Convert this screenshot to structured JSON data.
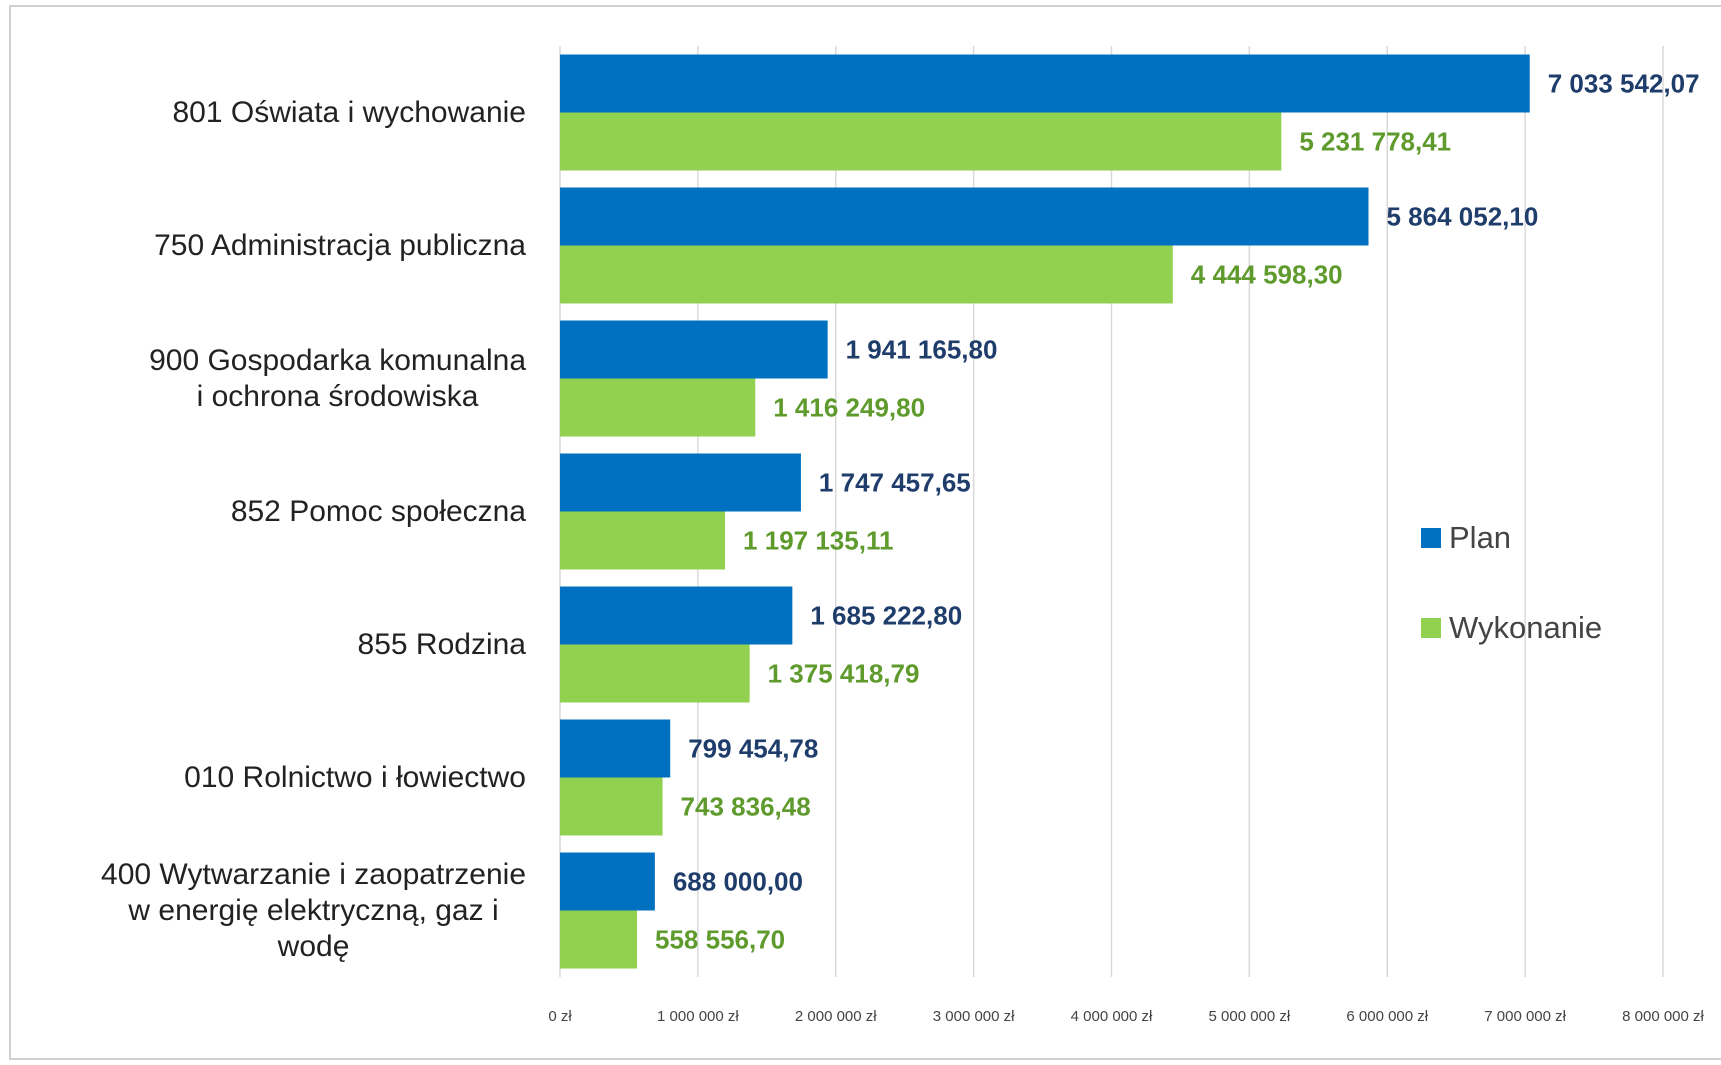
{
  "chart_data": {
    "type": "bar",
    "orientation": "horizontal",
    "categories": [
      "801 Oświata i wychowanie",
      "750 Administracja publiczna",
      "900 Gospodarka komunalna\ni ochrona środowiska",
      "852 Pomoc społeczna",
      "855 Rodzina",
      "010 Rolnictwo i łowiectwo",
      "400 Wytwarzanie i zaopatrzenie\nw energię elektryczną, gaz i\nwodę"
    ],
    "series": [
      {
        "name": "Plan",
        "color": "#0070c0",
        "label_color": "#1f3d6b",
        "values": [
          7033542.07,
          5864052.1,
          1941165.8,
          1747457.65,
          1685222.8,
          799454.78,
          688000.0
        ],
        "value_labels": [
          "7 033 542,07",
          "5 864 052,10",
          "1 941 165,80",
          "1 747 457,65",
          "1 685 222,80",
          "799 454,78",
          "688 000,00"
        ]
      },
      {
        "name": "Wykonanie",
        "color": "#92d050",
        "label_color": "#5e9a2c",
        "values": [
          5231778.41,
          4444598.3,
          1416249.8,
          1197135.11,
          1375418.79,
          743836.48,
          558556.7
        ],
        "value_labels": [
          "5 231 778,41",
          "4 444 598,30",
          "1 416 249,80",
          "1 197 135,11",
          "1 375 418,79",
          "743 836,48",
          "558 556,70"
        ]
      }
    ],
    "xlim": [
      0,
      8000000
    ],
    "xticks": [
      {
        "value": 0,
        "label": "0 zł"
      },
      {
        "value": 1000000,
        "label": "1 000 000 zł"
      },
      {
        "value": 2000000,
        "label": "2 000 000 zł"
      },
      {
        "value": 3000000,
        "label": "3 000 000 zł"
      },
      {
        "value": 4000000,
        "label": "4 000 000 zł"
      },
      {
        "value": 5000000,
        "label": "5 000 000 zł"
      },
      {
        "value": 6000000,
        "label": "6 000 000 zł"
      },
      {
        "value": 7000000,
        "label": "7 000 000 zł"
      },
      {
        "value": 8000000,
        "label": "8 000 000 zł"
      }
    ],
    "grid": true,
    "legend": "right"
  }
}
